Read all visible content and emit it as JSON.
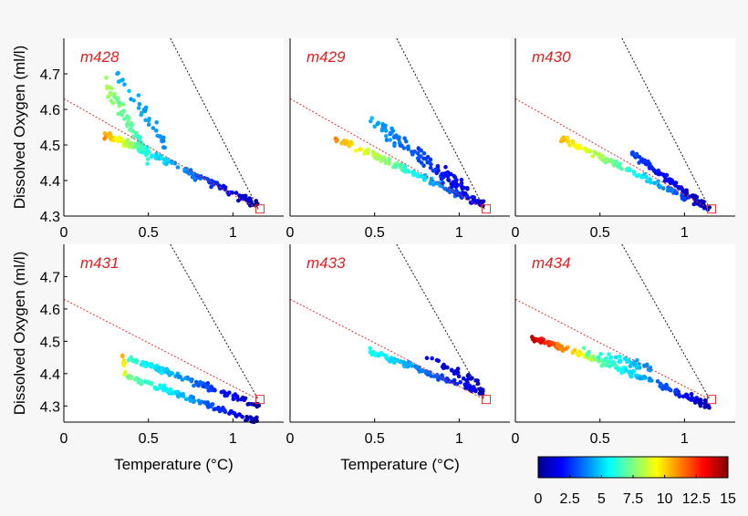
{
  "colors": {
    "panel_title": "#e02020",
    "ref_line_1": "#e03030",
    "ref_line_2": "#111111",
    "marker": "#e03030"
  },
  "colorbar": {
    "ticks": [
      "0",
      "2.5",
      "5",
      "7.5",
      "10",
      "12.5",
      "15"
    ],
    "range": [
      0,
      15
    ],
    "colormap": "jet"
  },
  "chart_data": [
    {
      "type": "scatter",
      "title": "m428",
      "xlabel": "",
      "ylabel": "Dissolved Oxygen (ml/l)",
      "xlim": [
        0,
        1.3
      ],
      "ylim": [
        4.3,
        4.8
      ],
      "xticks": [
        "0",
        "0.5",
        "1"
      ],
      "yticks": [
        "4.3",
        "4.4",
        "4.5",
        "4.6",
        "4.7"
      ],
      "reference_lines": [
        {
          "color": "red-dashed",
          "points": [
            [
              0,
              4.63
            ],
            [
              1.15,
              4.32
            ]
          ]
        },
        {
          "color": "black-dashed",
          "points": [
            [
              0.63,
              4.8
            ],
            [
              1.15,
              4.32
            ]
          ]
        }
      ],
      "marker": {
        "x": 1.16,
        "y": 4.32
      },
      "segments": [
        {
          "from": [
            0.23,
            4.53
          ],
          "to": [
            0.45,
            4.49
          ],
          "c_from": 11,
          "c_to": 7,
          "n": 60,
          "spread": 0.012
        },
        {
          "from": [
            0.45,
            4.49
          ],
          "to": [
            1.15,
            4.33
          ],
          "c_from": 6,
          "c_to": 0.5,
          "n": 110,
          "spread": 0.012
        },
        {
          "from": [
            0.25,
            4.67
          ],
          "to": [
            0.5,
            4.47
          ],
          "c_from": 8,
          "c_to": 6,
          "n": 70,
          "spread": 0.03
        },
        {
          "from": [
            0.31,
            4.7
          ],
          "to": [
            0.6,
            4.5
          ],
          "c_from": 4.5,
          "c_to": 4,
          "n": 35,
          "spread": 0.03
        }
      ]
    },
    {
      "type": "scatter",
      "title": "m429",
      "xlabel": "",
      "ylabel": "",
      "xlim": [
        0,
        1.3
      ],
      "ylim": [
        4.3,
        4.8
      ],
      "xticks": [
        "0",
        "0.5",
        "1"
      ],
      "yticks": [],
      "reference_lines": [
        {
          "color": "red-dashed",
          "points": [
            [
              0,
              4.63
            ],
            [
              1.15,
              4.32
            ]
          ]
        },
        {
          "color": "black-dashed",
          "points": [
            [
              0.63,
              4.8
            ],
            [
              1.15,
              4.32
            ]
          ]
        }
      ],
      "marker": {
        "x": 1.16,
        "y": 4.32
      },
      "segments": [
        {
          "from": [
            0.27,
            4.52
          ],
          "to": [
            1.15,
            4.33
          ],
          "c_from": 11,
          "c_to": 1,
          "n": 140,
          "spread": 0.012
        },
        {
          "from": [
            0.47,
            4.57
          ],
          "to": [
            1.05,
            4.37
          ],
          "c_from": 4.5,
          "c_to": 1.5,
          "n": 110,
          "spread": 0.025
        }
      ]
    },
    {
      "type": "scatter",
      "title": "m430",
      "xlabel": "",
      "ylabel": "",
      "xlim": [
        0,
        1.3
      ],
      "ylim": [
        4.3,
        4.8
      ],
      "xticks": [
        "0",
        "0.5",
        "1"
      ],
      "yticks": [],
      "reference_lines": [
        {
          "color": "red-dashed",
          "points": [
            [
              0,
              4.63
            ],
            [
              1.15,
              4.32
            ]
          ]
        },
        {
          "color": "black-dashed",
          "points": [
            [
              0.63,
              4.8
            ],
            [
              1.15,
              4.32
            ]
          ]
        }
      ],
      "marker": {
        "x": 1.16,
        "y": 4.32
      },
      "segments": [
        {
          "from": [
            0.27,
            4.52
          ],
          "to": [
            1.15,
            4.32
          ],
          "c_from": 10.5,
          "c_to": 1,
          "n": 120,
          "spread": 0.01
        },
        {
          "from": [
            0.68,
            4.48
          ],
          "to": [
            1.15,
            4.32
          ],
          "c_from": 3,
          "c_to": 0.5,
          "n": 100,
          "spread": 0.01
        }
      ]
    },
    {
      "type": "scatter",
      "title": "m431",
      "xlabel": "Temperature (°C)",
      "ylabel": "Dissolved Oxygen (ml/l)",
      "xlim": [
        0,
        1.3
      ],
      "ylim": [
        4.25,
        4.8
      ],
      "xticks": [
        "0",
        "0.5",
        "1"
      ],
      "yticks": [
        "4.3",
        "4.4",
        "4.5",
        "4.6",
        "4.7"
      ],
      "reference_lines": [
        {
          "color": "red-dashed",
          "points": [
            [
              0,
              4.63
            ],
            [
              1.15,
              4.32
            ]
          ]
        },
        {
          "color": "black-dashed",
          "points": [
            [
              0.63,
              4.8
            ],
            [
              1.15,
              4.32
            ]
          ]
        }
      ],
      "marker": {
        "x": 1.16,
        "y": 4.32
      },
      "segments": [
        {
          "from": [
            0.38,
            4.45
          ],
          "to": [
            1.15,
            4.3
          ],
          "c_from": 6.5,
          "c_to": 0.5,
          "n": 110,
          "spread": 0.012
        },
        {
          "from": [
            0.38,
            4.39
          ],
          "to": [
            1.15,
            4.25
          ],
          "c_from": 7.5,
          "c_to": 0.5,
          "n": 110,
          "spread": 0.012
        },
        {
          "from": [
            0.34,
            4.47
          ],
          "to": [
            0.37,
            4.39
          ],
          "c_from": 11,
          "c_to": 8,
          "n": 12,
          "spread": 0.01
        }
      ]
    },
    {
      "type": "scatter",
      "title": "m433",
      "xlabel": "Temperature (°C)",
      "ylabel": "",
      "xlim": [
        0,
        1.3
      ],
      "ylim": [
        4.25,
        4.8
      ],
      "xticks": [
        "0",
        "0.5",
        "1"
      ],
      "yticks": [],
      "reference_lines": [
        {
          "color": "red-dashed",
          "points": [
            [
              0,
              4.63
            ],
            [
              1.15,
              4.32
            ]
          ]
        },
        {
          "color": "black-dashed",
          "points": [
            [
              0.63,
              4.8
            ],
            [
              1.15,
              4.32
            ]
          ]
        }
      ],
      "marker": {
        "x": 1.16,
        "y": 4.32
      },
      "segments": [
        {
          "from": [
            0.47,
            4.47
          ],
          "to": [
            1.15,
            4.34
          ],
          "c_from": 6,
          "c_to": 1,
          "n": 120,
          "spread": 0.012
        },
        {
          "from": [
            0.8,
            4.45
          ],
          "to": [
            1.12,
            4.37
          ],
          "c_from": 2,
          "c_to": 1,
          "n": 30,
          "spread": 0.015
        }
      ]
    },
    {
      "type": "scatter",
      "title": "m434",
      "xlabel": "",
      "ylabel": "",
      "xlim": [
        0,
        1.3
      ],
      "ylim": [
        4.25,
        4.8
      ],
      "xticks": [
        "0",
        "0.5",
        "1"
      ],
      "yticks": [],
      "reference_lines": [
        {
          "color": "red-dashed",
          "points": [
            [
              0,
              4.63
            ],
            [
              1.15,
              4.32
            ]
          ]
        },
        {
          "color": "black-dashed",
          "points": [
            [
              0.63,
              4.8
            ],
            [
              1.15,
              4.32
            ]
          ]
        }
      ],
      "marker": {
        "x": 1.16,
        "y": 4.32
      },
      "segments": [
        {
          "from": [
            0.1,
            4.51
          ],
          "to": [
            0.5,
            4.44
          ],
          "c_from": 14,
          "c_to": 7.5,
          "n": 90,
          "spread": 0.01
        },
        {
          "from": [
            0.5,
            4.44
          ],
          "to": [
            1.15,
            4.3
          ],
          "c_from": 7,
          "c_to": 0.5,
          "n": 110,
          "spread": 0.012
        },
        {
          "from": [
            0.4,
            4.47
          ],
          "to": [
            0.8,
            4.42
          ],
          "c_from": 7,
          "c_to": 4,
          "n": 40,
          "spread": 0.015
        }
      ]
    }
  ]
}
